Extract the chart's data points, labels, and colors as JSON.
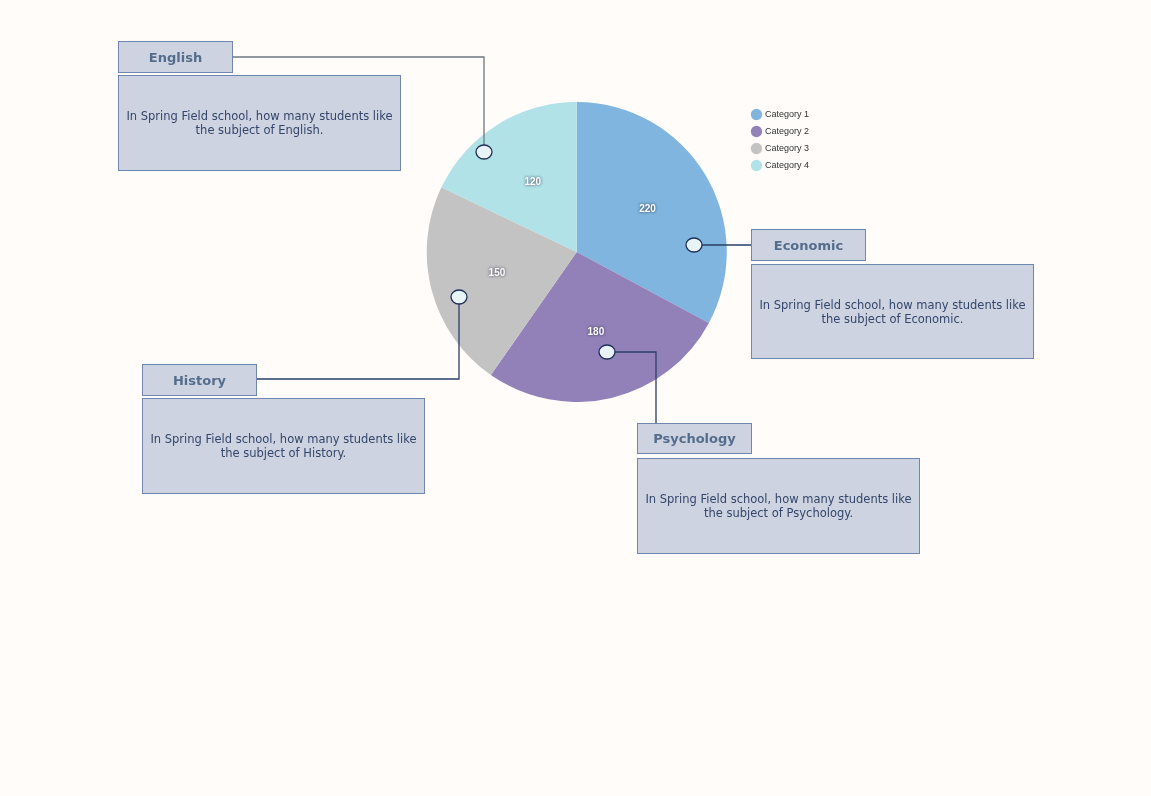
{
  "chart_data": {
    "type": "pie",
    "categories": [
      "Category 1",
      "Category 2",
      "Category 3",
      "Category 4"
    ],
    "values": [
      220,
      180,
      150,
      120
    ],
    "colors": [
      "#7fb5de",
      "#9181b8",
      "#c3c3c3",
      "#b0e2e8"
    ],
    "data_labels": true,
    "legend": "top right",
    "annotations": [
      "English",
      "In Spring Field school, how many students like the subject of English.",
      "Economic",
      "In Spring Field school, how many students like the subject of Economic.",
      "History",
      "In Spring Field school, how many students like the subject of History.",
      "Psychology",
      "In Spring Field school, how many students like the subject of Psychology."
    ]
  }
}
